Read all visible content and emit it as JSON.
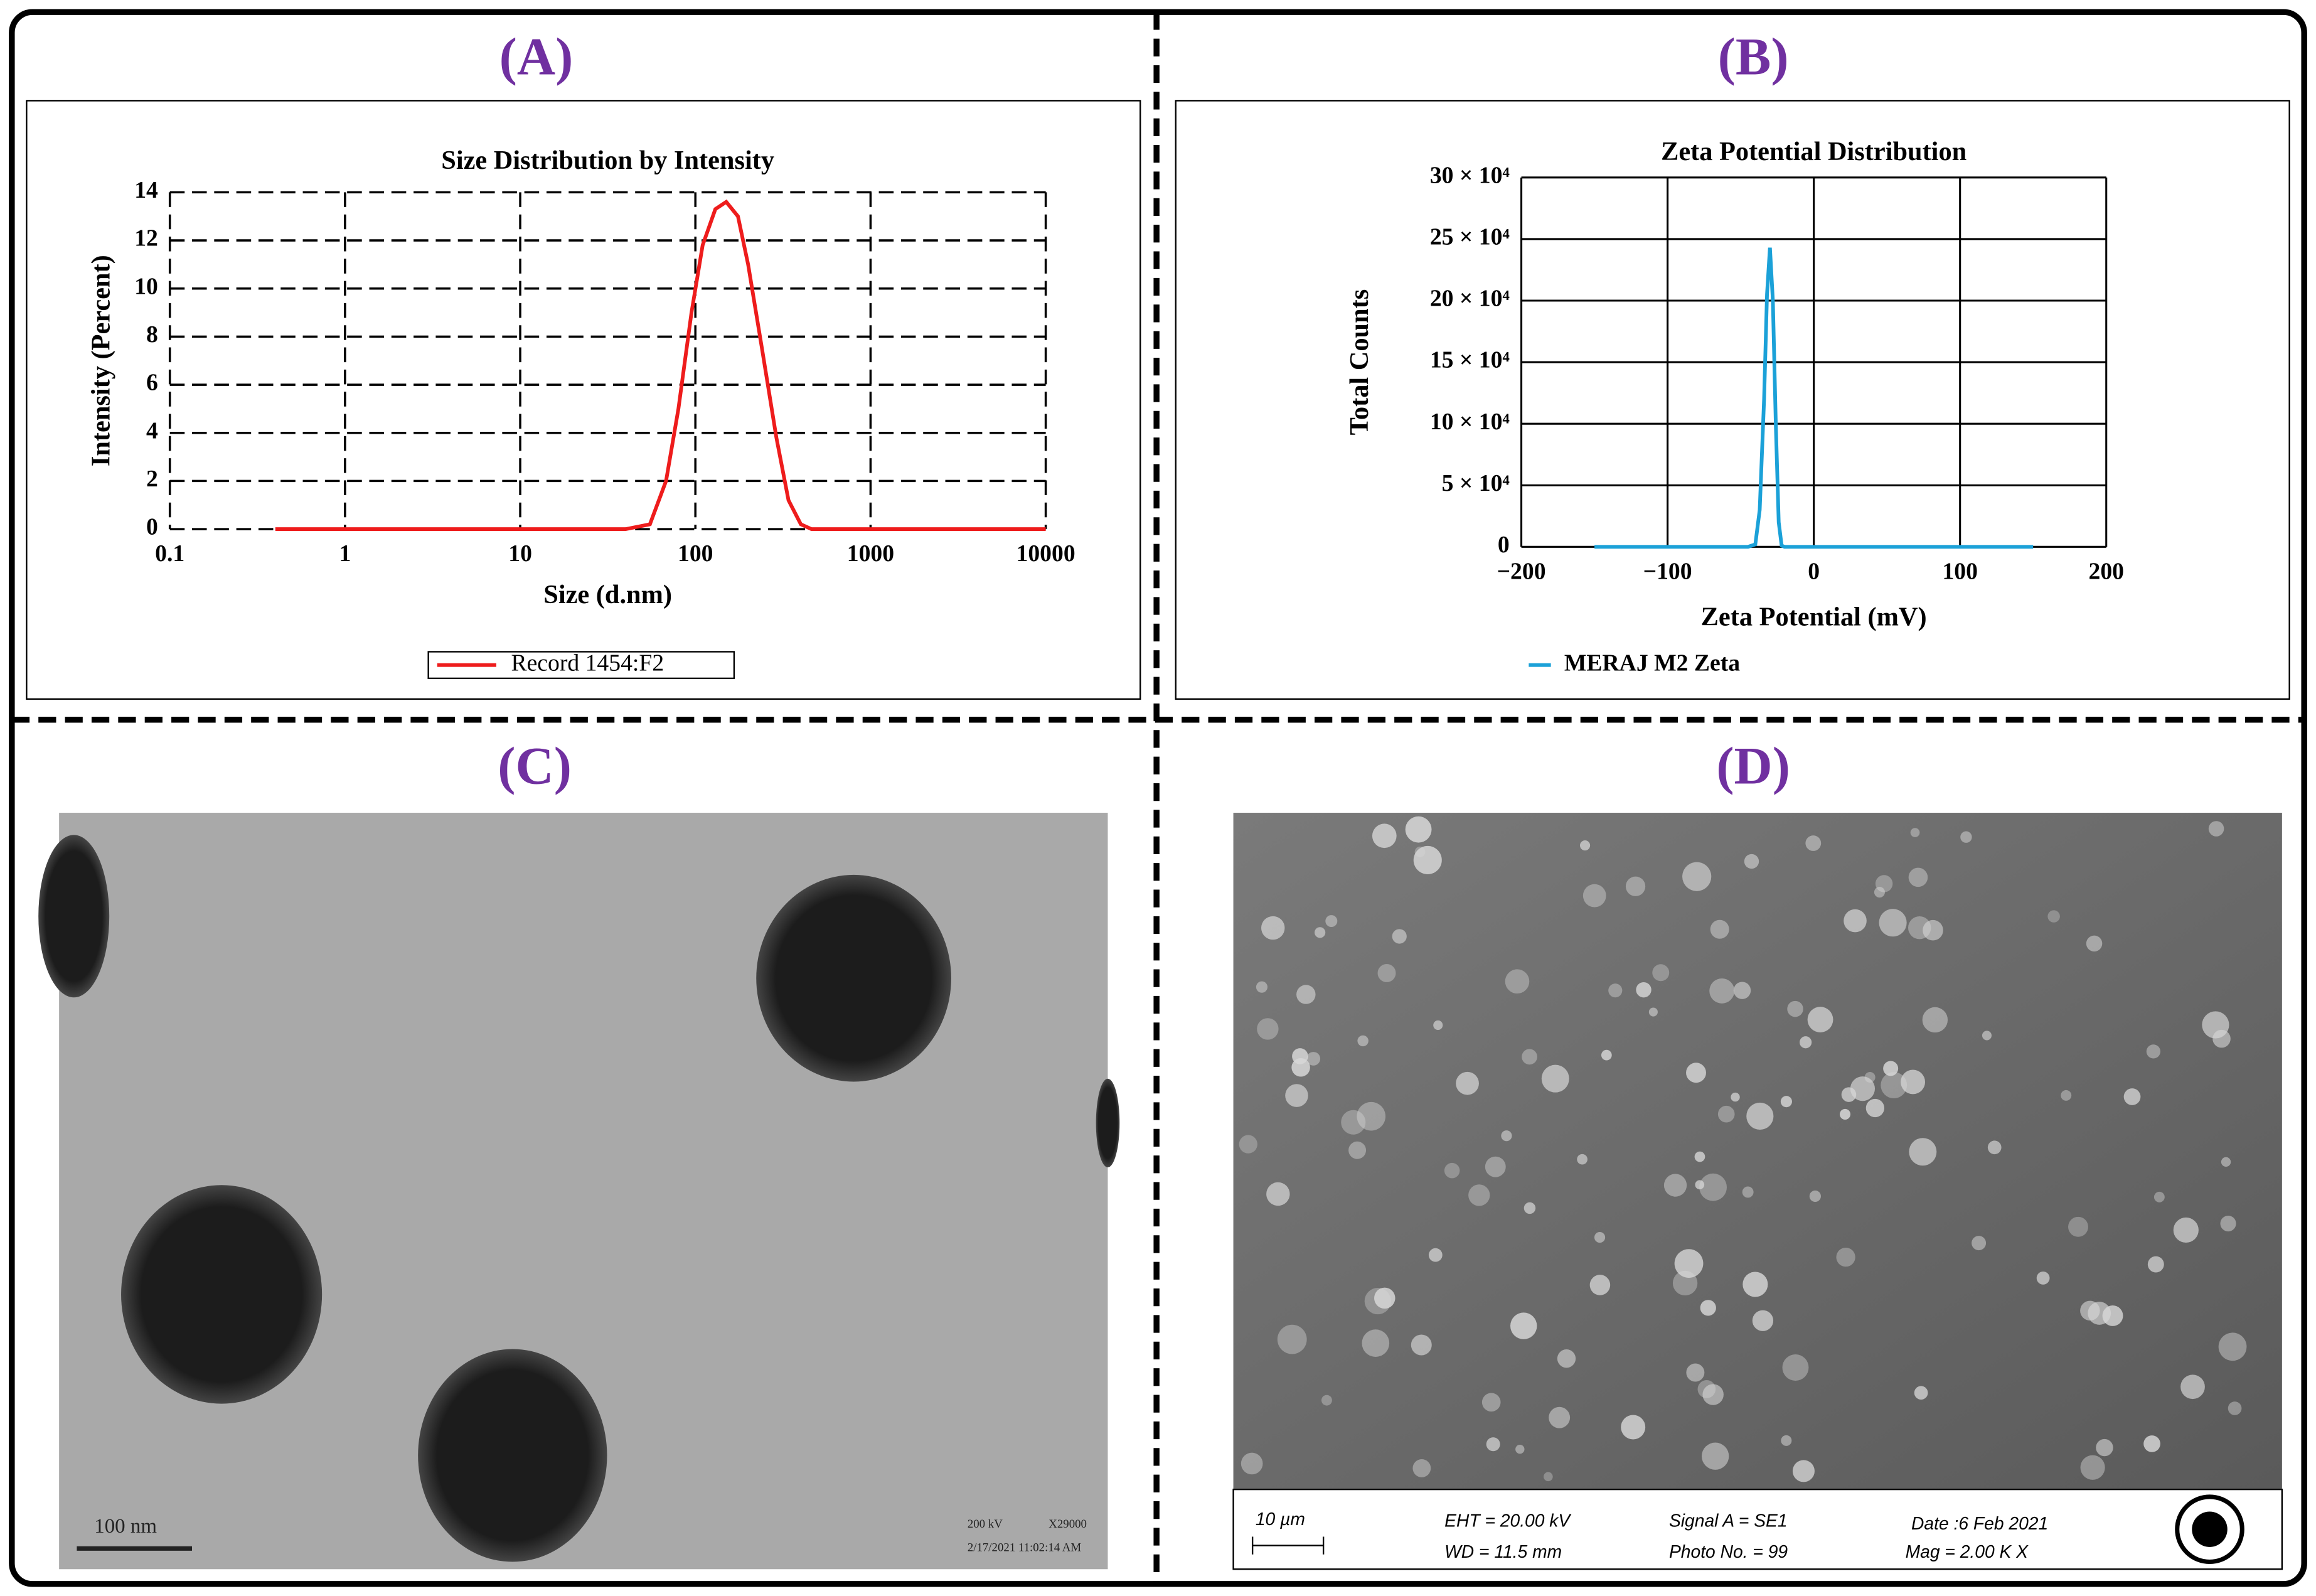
{
  "panel_labels": [
    "(A)",
    "(B)",
    "(C)",
    "(D)"
  ],
  "chart_data": [
    {
      "type": "line",
      "title": "Size Distribution by Intensity",
      "x_label": "Size (d.nm)",
      "y_label": "Intensity (Percent)",
      "xscale": "log",
      "xlim": [
        0.1,
        10000
      ],
      "xticks": [
        0.1,
        1,
        10,
        100,
        1000,
        10000
      ],
      "ylim": [
        0,
        14
      ],
      "yticks": [
        0,
        2,
        4,
        6,
        8,
        10,
        12,
        14
      ],
      "grid": "dashed",
      "x": [
        0.4,
        1,
        10,
        40,
        55,
        68,
        80,
        95,
        110,
        130,
        150,
        175,
        200,
        240,
        290,
        340,
        400,
        460,
        1000,
        10000
      ],
      "series": [
        {
          "name": "Record 1454:F2",
          "color": "#ee1c1c",
          "values": [
            0,
            0,
            0,
            0,
            0.2,
            2,
            5,
            9,
            11.8,
            13.3,
            13.6,
            13,
            11,
            7.5,
            3.8,
            1.2,
            0.2,
            0,
            0,
            0
          ]
        }
      ]
    },
    {
      "type": "line",
      "title": "Zeta Potential Distribution",
      "x_label": "Zeta Potential (mV)",
      "y_label": "Total Counts",
      "xlim": [
        -200,
        200
      ],
      "xticks": [
        {
          "value": -200,
          "label": "−200"
        },
        {
          "value": -100,
          "label": "−100"
        },
        0,
        100,
        200
      ],
      "ylim": [
        0,
        300000
      ],
      "yticks": [
        0,
        {
          "value": 50000,
          "label": "5 × 10⁴"
        },
        {
          "value": 100000,
          "label": "10 × 10⁴"
        },
        {
          "value": 150000,
          "label": "15 × 10⁴"
        },
        {
          "value": 200000,
          "label": "20 × 10⁴"
        },
        {
          "value": 250000,
          "label": "25 × 10⁴"
        },
        {
          "value": 300000,
          "label": "30 × 10⁴"
        }
      ],
      "grid": "solid",
      "x": [
        -150,
        -45,
        -40,
        -37,
        -34,
        -32,
        -30,
        -28,
        -26,
        -24,
        -22,
        -20,
        150
      ],
      "series": [
        {
          "name": "MERAJ M2 Zeta",
          "color": "#1ba1d8",
          "values": [
            0,
            0,
            2000,
            30000,
            120000,
            205000,
            243000,
            200000,
            100000,
            20000,
            1000,
            0,
            0
          ]
        }
      ]
    }
  ],
  "tem_image": {
    "scale_bar": "100 nm",
    "info": [
      "200 kV",
      "X29000",
      "2/17/2021 11:02:14 AM"
    ]
  },
  "sem_image": {
    "scale_bar": "10 µm",
    "info": [
      "EHT = 20.00 kV",
      "WD = 11.5 mm",
      "Signal A = SE1",
      "Photo No. = 99",
      "Date :6 Feb 2021",
      "Mag =  2.00 K X"
    ]
  }
}
